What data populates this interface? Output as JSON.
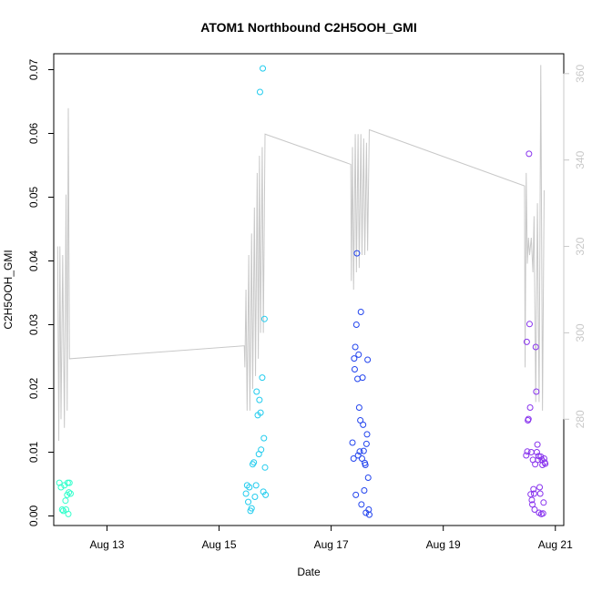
{
  "chart_data": {
    "type": "scatter",
    "title": "ATOM1 Northbound C2H5OOH_GMI",
    "xlabel": "Date",
    "ylabel": "C2H5OOH_GMI",
    "xlim": [
      12.05,
      21.15
    ],
    "ylim": [
      -0.0015,
      0.0725
    ],
    "y_ticks": [
      0.0,
      0.01,
      0.02,
      0.03,
      0.04,
      0.05,
      0.06,
      0.07
    ],
    "y_tick_labels": [
      "0.00",
      "0.01",
      "0.02",
      "0.03",
      "0.04",
      "0.05",
      "0.06",
      "0.07"
    ],
    "x_ticks": [
      13,
      15,
      17,
      19,
      21
    ],
    "x_tick_labels": [
      "Aug 13",
      "Aug 15",
      "Aug 17",
      "Aug 19",
      "Aug 21"
    ],
    "y2_lim": [
      255.4,
      364.6
    ],
    "y2_ticks": [
      280,
      300,
      320,
      340,
      360
    ],
    "y2_tick_labels": [
      "280",
      "300",
      "320",
      "340",
      "360"
    ],
    "y2_color": "#c8c8c8",
    "grid": false,
    "series": [
      {
        "color": "#33ffcc",
        "points": [
          [
            12.15,
            0.0052
          ],
          [
            12.18,
            0.0045
          ],
          [
            12.2,
            0.001
          ],
          [
            12.22,
            0.0008
          ],
          [
            12.24,
            0.0048
          ],
          [
            12.26,
            0.0024
          ],
          [
            12.27,
            0.001
          ],
          [
            12.29,
            0.0033
          ],
          [
            12.3,
            0.0052
          ],
          [
            12.31,
            0.0003
          ],
          [
            12.32,
            0.0037
          ],
          [
            12.33,
            0.0052
          ],
          [
            12.35,
            0.0035
          ]
        ]
      },
      {
        "color": "#22ccee",
        "points": [
          [
            15.48,
            0.0035
          ],
          [
            15.5,
            0.0048
          ],
          [
            15.52,
            0.0022
          ],
          [
            15.54,
            0.0045
          ],
          [
            15.56,
            0.0008
          ],
          [
            15.58,
            0.0012
          ],
          [
            15.6,
            0.0081
          ],
          [
            15.62,
            0.0084
          ],
          [
            15.64,
            0.003
          ],
          [
            15.66,
            0.0048
          ],
          [
            15.67,
            0.0195
          ],
          [
            15.69,
            0.0158
          ],
          [
            15.71,
            0.0097
          ],
          [
            15.72,
            0.0182
          ],
          [
            15.73,
            0.0665
          ],
          [
            15.74,
            0.0162
          ],
          [
            15.75,
            0.0104
          ],
          [
            15.77,
            0.0217
          ],
          [
            15.78,
            0.0702
          ],
          [
            15.79,
            0.0038
          ],
          [
            15.8,
            0.0122
          ],
          [
            15.81,
            0.0309
          ],
          [
            15.82,
            0.0076
          ],
          [
            15.83,
            0.0033
          ]
        ]
      },
      {
        "color": "#2244ee",
        "points": [
          [
            17.38,
            0.0115
          ],
          [
            17.4,
            0.009
          ],
          [
            17.41,
            0.0247
          ],
          [
            17.42,
            0.023
          ],
          [
            17.43,
            0.0265
          ],
          [
            17.44,
            0.0033
          ],
          [
            17.45,
            0.03
          ],
          [
            17.46,
            0.0412
          ],
          [
            17.47,
            0.0215
          ],
          [
            17.48,
            0.0095
          ],
          [
            17.49,
            0.0253
          ],
          [
            17.5,
            0.017
          ],
          [
            17.51,
            0.0101
          ],
          [
            17.52,
            0.015
          ],
          [
            17.53,
            0.032
          ],
          [
            17.54,
            0.0018
          ],
          [
            17.55,
            0.009
          ],
          [
            17.56,
            0.0217
          ],
          [
            17.57,
            0.0143
          ],
          [
            17.58,
            0.0102
          ],
          [
            17.59,
            0.004
          ],
          [
            17.6,
            0.0083
          ],
          [
            17.61,
            0.008
          ],
          [
            17.62,
            0.0005
          ],
          [
            17.63,
            0.0113
          ],
          [
            17.64,
            0.0128
          ],
          [
            17.65,
            0.0245
          ],
          [
            17.66,
            0.006
          ],
          [
            17.67,
            0.001
          ],
          [
            17.68,
            0.0002
          ]
        ]
      },
      {
        "color": "#8833ee",
        "points": [
          [
            20.48,
            0.0095
          ],
          [
            20.49,
            0.0273
          ],
          [
            20.5,
            0.0101
          ],
          [
            20.51,
            0.015
          ],
          [
            20.52,
            0.0152
          ],
          [
            20.53,
            0.0568
          ],
          [
            20.54,
            0.0301
          ],
          [
            20.55,
            0.017
          ],
          [
            20.56,
            0.0034
          ],
          [
            20.57,
            0.01
          ],
          [
            20.58,
            0.0025
          ],
          [
            20.59,
            0.0018
          ],
          [
            20.6,
            0.0088
          ],
          [
            20.61,
            0.0042
          ],
          [
            20.62,
            0.0035
          ],
          [
            20.63,
            0.001
          ],
          [
            20.64,
            0.0081
          ],
          [
            20.65,
            0.0265
          ],
          [
            20.66,
            0.0195
          ],
          [
            20.67,
            0.01
          ],
          [
            20.68,
            0.0112
          ],
          [
            20.69,
            0.0088
          ],
          [
            20.7,
            0.0094
          ],
          [
            20.71,
            0.0005
          ],
          [
            20.72,
            0.0045
          ],
          [
            20.73,
            0.0035
          ],
          [
            20.74,
            0.0093
          ],
          [
            20.75,
            0.0003
          ],
          [
            20.76,
            0.0088
          ],
          [
            20.77,
            0.008
          ],
          [
            20.78,
            0.0004
          ],
          [
            20.79,
            0.0021
          ],
          [
            20.8,
            0.009
          ],
          [
            20.81,
            0.0084
          ],
          [
            20.82,
            0.0082
          ]
        ]
      }
    ],
    "altitude_line": {
      "color": "#c8c8c8",
      "points": [
        [
          12.12,
          320
        ],
        [
          12.14,
          275
        ],
        [
          12.16,
          320
        ],
        [
          12.18,
          280
        ],
        [
          12.21,
          318
        ],
        [
          12.24,
          278
        ],
        [
          12.27,
          332
        ],
        [
          12.29,
          282
        ],
        [
          12.31,
          352
        ],
        [
          12.33,
          294
        ],
        [
          15.45,
          297
        ],
        [
          15.46,
          292
        ],
        [
          15.48,
          310
        ],
        [
          15.5,
          282
        ],
        [
          15.53,
          318
        ],
        [
          15.55,
          282
        ],
        [
          15.58,
          323
        ],
        [
          15.6,
          287
        ],
        [
          15.63,
          329
        ],
        [
          15.65,
          290
        ],
        [
          15.68,
          337
        ],
        [
          15.7,
          294
        ],
        [
          15.72,
          341
        ],
        [
          15.74,
          300
        ],
        [
          15.77,
          343
        ],
        [
          15.79,
          300
        ],
        [
          15.82,
          346
        ],
        [
          17.35,
          339
        ],
        [
          17.36,
          312
        ],
        [
          17.38,
          343
        ],
        [
          17.4,
          310
        ],
        [
          17.43,
          346
        ],
        [
          17.45,
          314
        ],
        [
          17.48,
          346
        ],
        [
          17.5,
          315
        ],
        [
          17.53,
          346
        ],
        [
          17.55,
          318
        ],
        [
          17.58,
          345
        ],
        [
          17.6,
          318
        ],
        [
          17.63,
          344
        ],
        [
          17.65,
          319
        ],
        [
          17.68,
          347
        ],
        [
          20.45,
          334
        ],
        [
          20.46,
          292
        ],
        [
          20.48,
          337
        ],
        [
          20.5,
          316
        ],
        [
          20.52,
          322
        ],
        [
          20.54,
          318
        ],
        [
          20.57,
          322
        ],
        [
          20.6,
          314
        ],
        [
          20.62,
          327
        ],
        [
          20.65,
          284
        ],
        [
          20.68,
          330
        ],
        [
          20.71,
          284
        ],
        [
          20.74,
          362
        ],
        [
          20.77,
          282
        ],
        [
          20.8,
          333
        ]
      ]
    }
  }
}
